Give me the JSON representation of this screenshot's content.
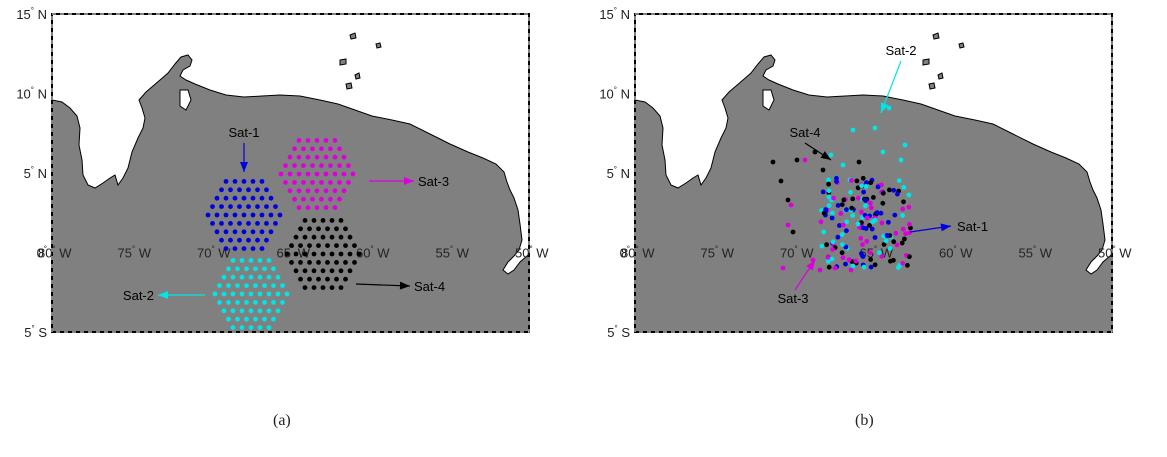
{
  "panels": [
    {
      "caption": "(a)",
      "lon_ticks": [
        "80",
        "75",
        "70",
        "65",
        "60",
        "55",
        "50"
      ],
      "lon_suffix": "W",
      "lat_ticks": [
        {
          "value": "15",
          "hemi": "N"
        },
        {
          "value": "10",
          "hemi": "N"
        },
        {
          "value": "5",
          "hemi": "N"
        },
        {
          "value": "0",
          "hemi": ""
        },
        {
          "value": "5",
          "hemi": "S"
        }
      ],
      "satellites": [
        {
          "name": "Sat-1",
          "color": "#0000dd",
          "center_lon": -72.0,
          "center_lat": 2.5,
          "radius": 4
        },
        {
          "name": "Sat-3",
          "color": "#dd00dd",
          "center_lon": -66.5,
          "center_lat": 5.0,
          "radius": 4
        },
        {
          "name": "Sat-4",
          "color": "#000000",
          "center_lon": -66.0,
          "center_lat": 0.0,
          "radius": 4
        },
        {
          "name": "Sat-2",
          "color": "#00e5e5",
          "center_lon": -71.0,
          "center_lat": -2.5,
          "radius": 4
        }
      ]
    },
    {
      "caption": "(b)",
      "lon_ticks": [
        "80",
        "75",
        "70",
        "65",
        "60",
        "55",
        "50"
      ],
      "lon_suffix": "W",
      "lat_ticks": [
        {
          "value": "15",
          "hemi": "N"
        },
        {
          "value": "10",
          "hemi": "N"
        },
        {
          "value": "5",
          "hemi": "N"
        },
        {
          "value": "0",
          "hemi": ""
        },
        {
          "value": "5",
          "hemi": "S"
        }
      ],
      "satellites": [
        {
          "name": "Sat-2",
          "color": "#00e5e5"
        },
        {
          "name": "Sat-4",
          "color": "#000000"
        },
        {
          "name": "Sat-1",
          "color": "#0000dd"
        },
        {
          "name": "Sat-3",
          "color": "#dd00dd"
        }
      ]
    }
  ],
  "map": {
    "land_color": "#808080",
    "ocean_color": "#ffffff",
    "lon_range": [
      -80,
      -50
    ],
    "lat_range": [
      -5,
      15
    ]
  }
}
